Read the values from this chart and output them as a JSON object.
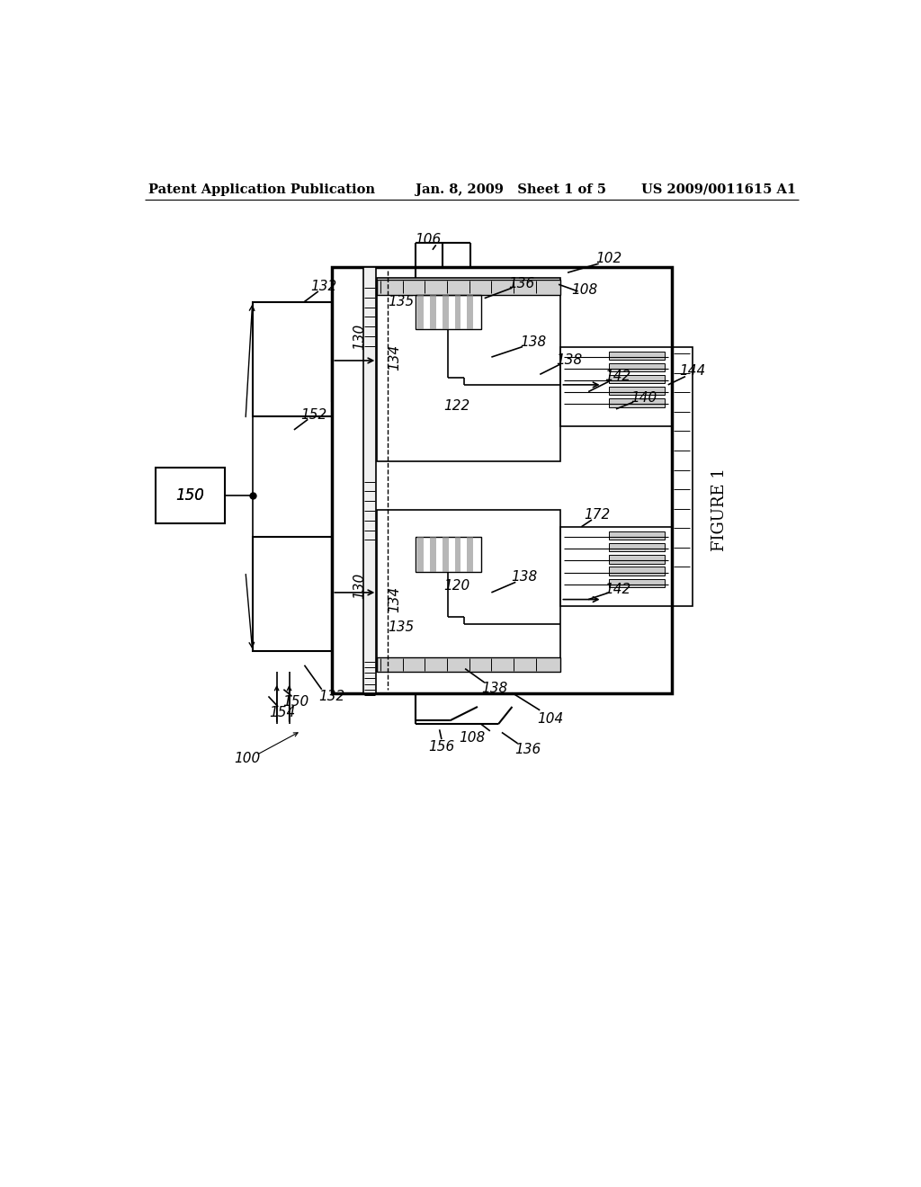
{
  "background_color": "#ffffff",
  "header_left": "Patent Application Publication",
  "header_center": "Jan. 8, 2009   Sheet 1 of 5",
  "header_right": "US 2009/0011615 A1",
  "figure_label": "FIGURE 1",
  "line_color": "#000000"
}
